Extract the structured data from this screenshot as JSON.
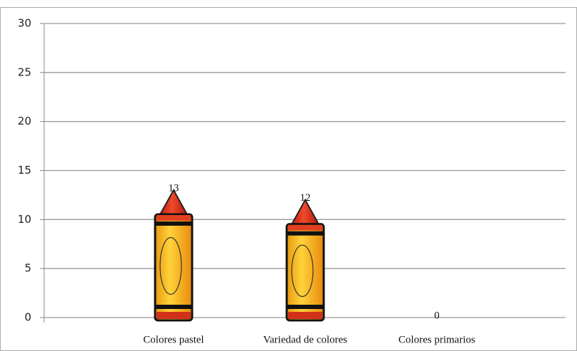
{
  "chart_data": {
    "type": "bar",
    "categories": [
      "Colores pastel",
      "Variedad de colores",
      "Colores primarios"
    ],
    "values": [
      13,
      12,
      0
    ],
    "ylim": [
      0,
      30
    ],
    "yticks": [
      0,
      5,
      10,
      15,
      20,
      25,
      30
    ],
    "grid": true,
    "color": "#f5b321"
  }
}
